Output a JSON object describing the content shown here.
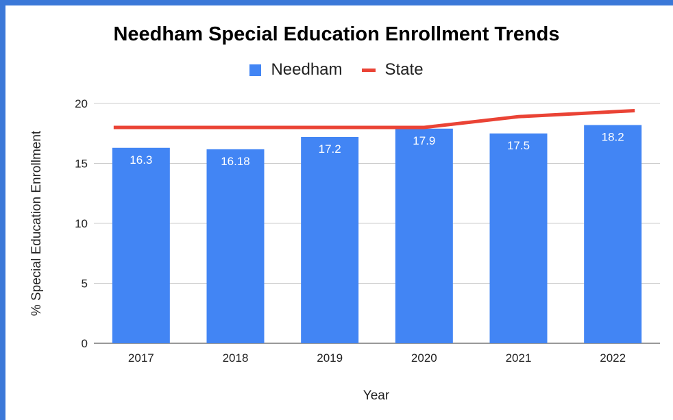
{
  "chart_data": {
    "type": "bar",
    "title": "Needham Special Education Enrollment Trends",
    "xlabel": "Year",
    "ylabel": "% Special Education Enrollment",
    "categories": [
      "2017",
      "2018",
      "2019",
      "2020",
      "2021",
      "2022"
    ],
    "ylim": [
      0,
      20
    ],
    "yticks": [
      "0",
      "5",
      "10",
      "15",
      "20"
    ],
    "grid": true,
    "legend_position": "top",
    "series": [
      {
        "name": "Needham",
        "type": "bar",
        "color": "#4285f4",
        "values": [
          16.3,
          16.18,
          17.2,
          17.9,
          17.5,
          18.2
        ],
        "labels": [
          "16.3",
          "16.18",
          "17.2",
          "17.9",
          "17.5",
          "18.2"
        ]
      },
      {
        "name": "State",
        "type": "line",
        "color": "#ea4335",
        "values": [
          18.0,
          18.0,
          18.0,
          18.0,
          18.9,
          19.4
        ]
      }
    ]
  }
}
